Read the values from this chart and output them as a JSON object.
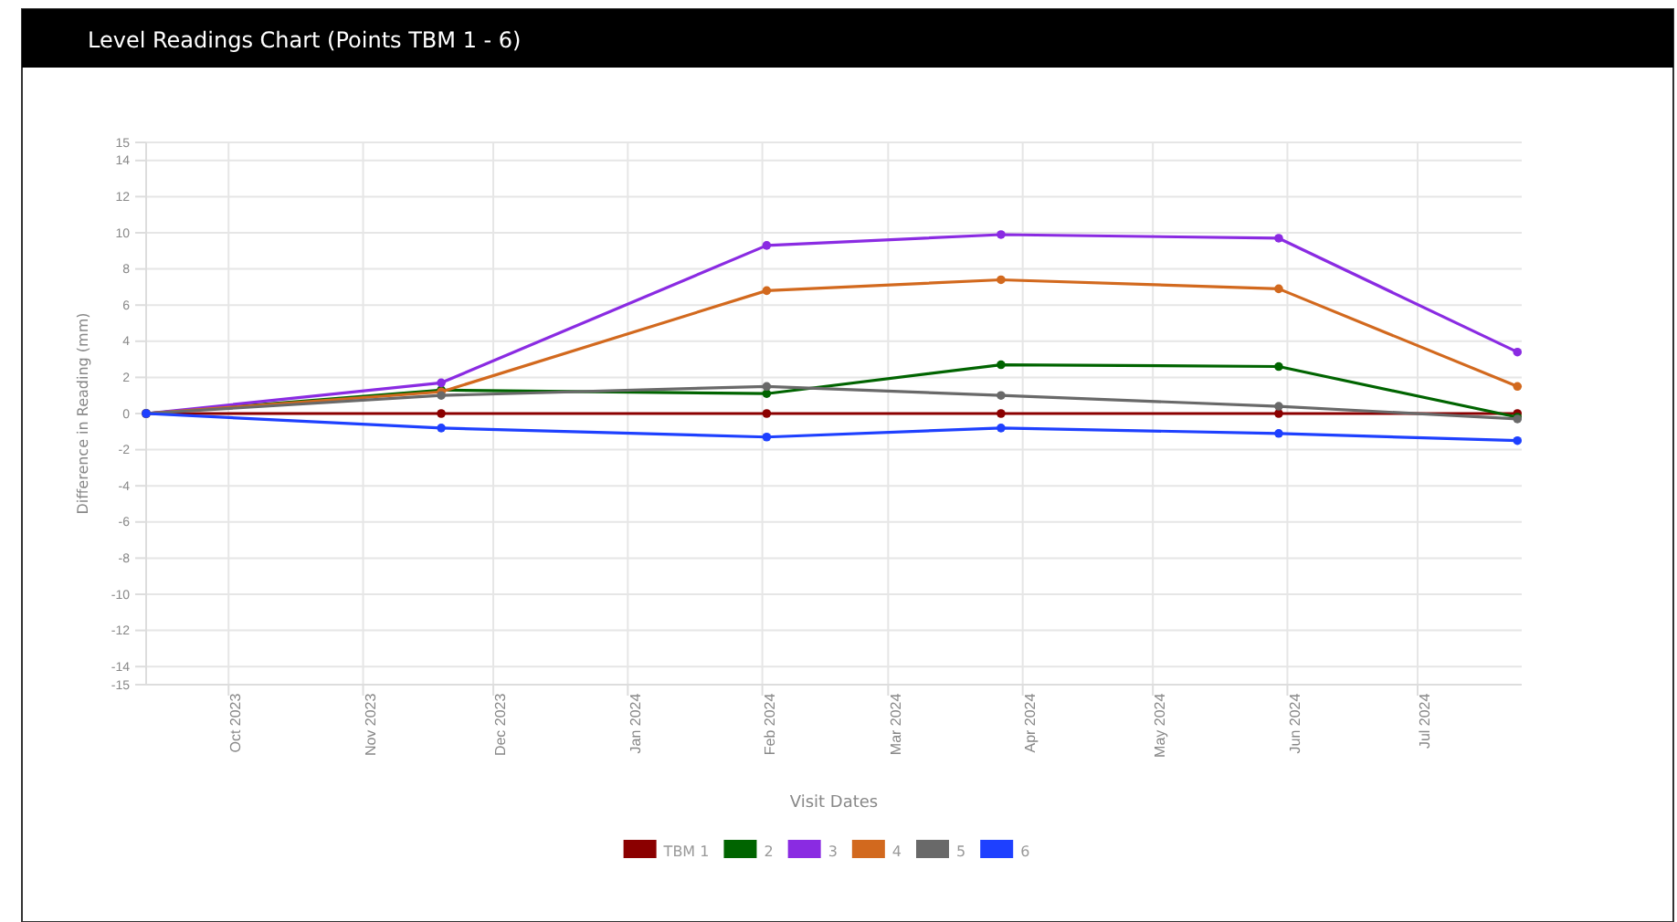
{
  "chart_data": {
    "type": "line",
    "title": "Level Readings Chart (Points TBM 1 - 6)",
    "xlabel": "Visit Dates",
    "ylabel": "Difference in Reading (mm)",
    "x": [
      "2023-09-12",
      "2023-11-19",
      "2024-02-02",
      "2024-03-27",
      "2024-05-30",
      "2024-07-24"
    ],
    "series": [
      {
        "name": "TBM 1",
        "color": "#8b0000",
        "values": [
          0,
          0,
          0,
          0,
          0,
          0
        ]
      },
      {
        "name": "2",
        "color": "#006400",
        "values": [
          0,
          1.3,
          1.1,
          2.7,
          2.6,
          -0.2
        ]
      },
      {
        "name": "3",
        "color": "#8a2be2",
        "values": [
          0,
          1.7,
          9.3,
          9.9,
          9.7,
          3.4
        ]
      },
      {
        "name": "4",
        "color": "#d2691e",
        "values": [
          0,
          1.2,
          6.8,
          7.4,
          6.9,
          1.5
        ]
      },
      {
        "name": "5",
        "color": "#696969",
        "values": [
          0,
          1.0,
          1.5,
          1.0,
          0.4,
          -0.3
        ]
      },
      {
        "name": "6",
        "color": "#1e40ff",
        "values": [
          0,
          -0.8,
          -1.3,
          -0.8,
          -1.1,
          -1.5
        ]
      }
    ],
    "xlim": [
      "2023-09-12",
      "2024-07-25"
    ],
    "xticks": [
      {
        "value": "2023-10-01",
        "label": "Oct 2023"
      },
      {
        "value": "2023-11-01",
        "label": "Nov 2023"
      },
      {
        "value": "2023-12-01",
        "label": "Dec 2023"
      },
      {
        "value": "2024-01-01",
        "label": "Jan 2024"
      },
      {
        "value": "2024-02-01",
        "label": "Feb 2024"
      },
      {
        "value": "2024-03-01",
        "label": "Mar 2024"
      },
      {
        "value": "2024-04-01",
        "label": "Apr 2024"
      },
      {
        "value": "2024-05-01",
        "label": "May 2024"
      },
      {
        "value": "2024-06-01",
        "label": "Jun 2024"
      },
      {
        "value": "2024-07-01",
        "label": "Jul 2024"
      }
    ],
    "ylim": [
      -15,
      15
    ],
    "yticks": [
      -15,
      -14,
      -12,
      -10,
      -8,
      -6,
      -4,
      -2,
      0,
      2,
      4,
      6,
      8,
      10,
      12,
      14,
      15
    ],
    "grid": true,
    "legend": "bottom",
    "marker": "circle",
    "line_style": "solid"
  }
}
